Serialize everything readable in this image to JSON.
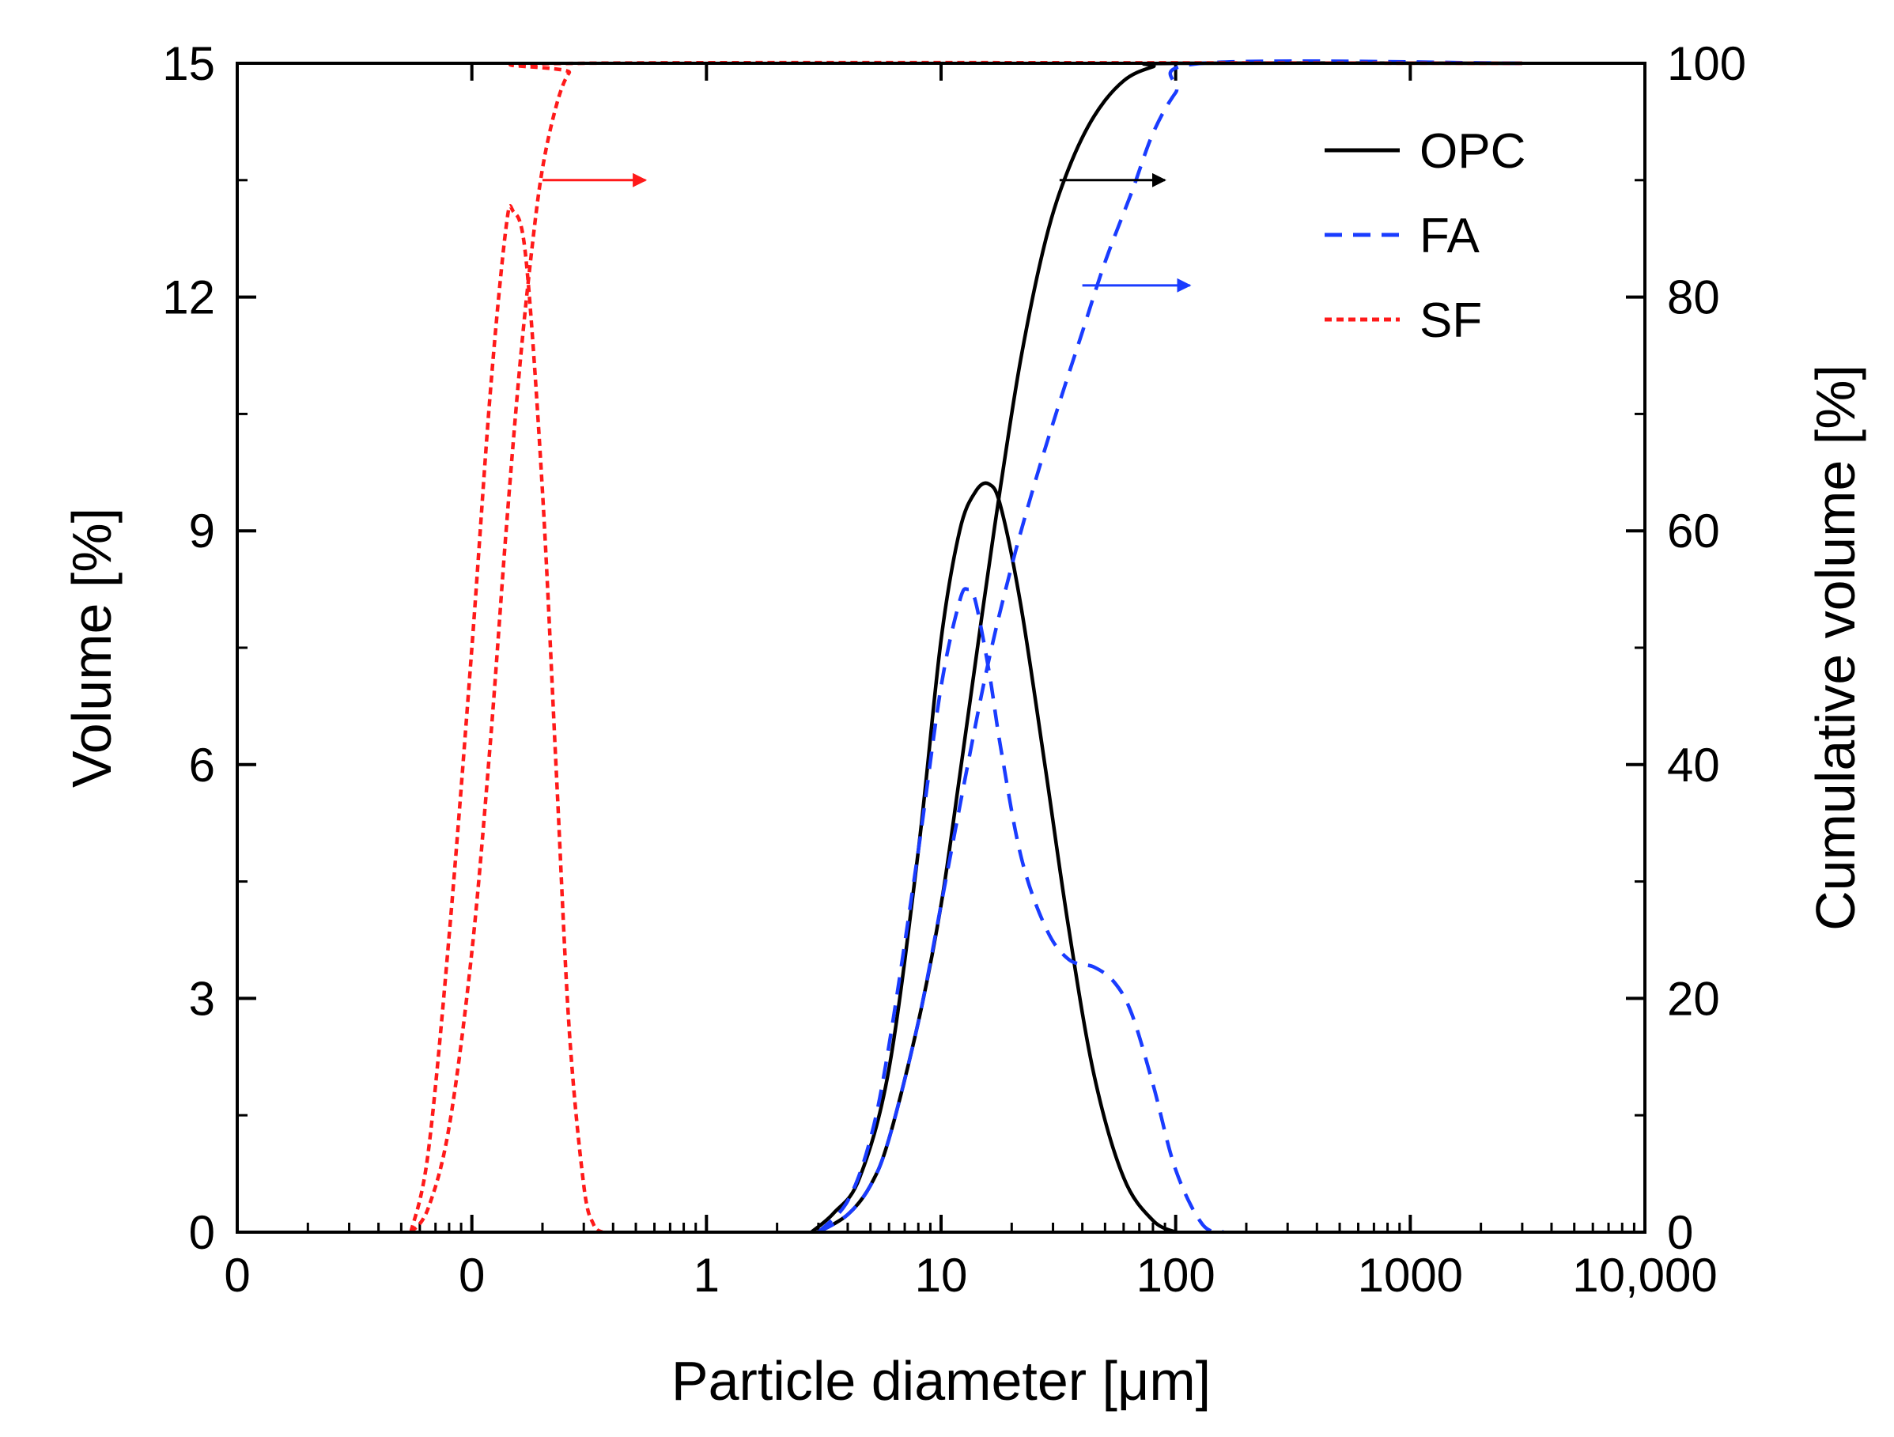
{
  "chart_data": {
    "type": "line",
    "title": "",
    "xlabel": "Particle diameter [μm]",
    "ylabel": "Volume [%]",
    "y2label": "Cumulative volume [%]",
    "xscale": "log",
    "xlim": [
      0.01,
      10000
    ],
    "ylim": [
      0,
      15
    ],
    "y2lim": [
      0,
      100
    ],
    "x_tick_values": [
      0.01,
      0.1,
      1,
      10,
      100,
      1000,
      10000
    ],
    "x_tick_labels": [
      "0",
      "0",
      "1",
      "10",
      "100",
      "1000",
      "10,000"
    ],
    "y_ticks": [
      0,
      3,
      6,
      9,
      12,
      15
    ],
    "y_tick_labels": [
      "0",
      "3",
      "6",
      "9",
      "12",
      "15"
    ],
    "y2_ticks": [
      0,
      20,
      40,
      60,
      80,
      100
    ],
    "y2_tick_labels": [
      "0",
      "20",
      "40",
      "60",
      "80",
      "100"
    ],
    "grid": false,
    "legend_position": "top-right",
    "series": [
      {
        "name": "OPC",
        "color": "#000000",
        "dash": "solid",
        "axis": "left",
        "x": [
          2.8,
          3.5,
          4.5,
          6,
          8,
          10,
          12,
          14,
          16,
          18,
          22,
          28,
          35,
          45,
          60,
          80,
          100
        ],
        "y": [
          0,
          0.25,
          0.7,
          2.1,
          4.9,
          7.6,
          9.0,
          9.5,
          9.6,
          9.3,
          8.0,
          5.9,
          3.9,
          2.0,
          0.7,
          0.15,
          0
        ]
      },
      {
        "name": "OPC cumulative",
        "color": "#000000",
        "dash": "solid",
        "axis": "right",
        "x": [
          3,
          4,
          5,
          6,
          8,
          10,
          12,
          15,
          18,
          22,
          28,
          35,
          45,
          60,
          80,
          100,
          3000
        ],
        "y": [
          0,
          1.5,
          4,
          8,
          18,
          28,
          39,
          53,
          64,
          75,
          85,
          91,
          95.5,
          98.5,
          99.7,
          100,
          100
        ]
      },
      {
        "name": "FA",
        "color": "#1a3cff",
        "dash": "dashed",
        "axis": "left",
        "x": [
          3,
          4,
          5,
          6,
          8,
          10,
          12,
          13,
          14,
          16,
          18,
          22,
          28,
          35,
          45,
          55,
          65,
          80,
          100,
          130,
          160
        ],
        "y": [
          0,
          0.4,
          1.2,
          2.4,
          4.9,
          7.0,
          8.1,
          8.25,
          8.1,
          7.2,
          6.2,
          4.8,
          3.9,
          3.5,
          3.4,
          3.2,
          2.8,
          1.9,
          0.8,
          0.1,
          0
        ]
      },
      {
        "name": "FA cumulative",
        "color": "#1a3cff",
        "dash": "dashed",
        "axis": "right",
        "x": [
          3,
          4,
          5,
          6,
          8,
          10,
          13,
          16,
          20,
          25,
          32,
          40,
          50,
          65,
          80,
          100,
          130,
          3000
        ],
        "y": [
          0,
          1.5,
          4,
          8,
          18,
          28,
          40,
          49,
          57,
          64,
          71,
          77,
          83,
          89,
          94,
          97.5,
          100,
          100
        ]
      },
      {
        "name": "SF",
        "color": "#ff1a1a",
        "dash": "dotted",
        "axis": "left",
        "x": [
          0.055,
          0.065,
          0.08,
          0.1,
          0.12,
          0.14,
          0.15,
          0.17,
          0.2,
          0.23,
          0.26,
          0.3,
          0.33,
          0.36
        ],
        "y": [
          0,
          1.0,
          3.8,
          7.5,
          10.8,
          12.9,
          13.1,
          12.5,
          9.5,
          5.8,
          2.6,
          0.6,
          0.1,
          0
        ]
      },
      {
        "name": "SF cumulative",
        "color": "#ff1a1a",
        "dash": "dotted",
        "axis": "right",
        "x": [
          0.055,
          0.065,
          0.08,
          0.1,
          0.12,
          0.14,
          0.16,
          0.18,
          0.2,
          0.23,
          0.26,
          0.3,
          3000
        ],
        "y": [
          0,
          2,
          9,
          24,
          42,
          60,
          74,
          84,
          91,
          96.5,
          99.2,
          100,
          100
        ]
      }
    ],
    "annotations": [
      {
        "name": "sf-arrow",
        "color": "#ff1a1a",
        "x_start": 0.2,
        "x_end": 0.55,
        "y2": 90
      },
      {
        "name": "opc-arrow",
        "color": "#000000",
        "x_start": 32,
        "x_end": 90,
        "y2": 90
      },
      {
        "name": "fa-arrow",
        "color": "#1a3cff",
        "x_start": 40,
        "x_end": 115,
        "y2": 81
      }
    ],
    "legend": [
      {
        "label": "OPC",
        "color": "#000000",
        "dash": "solid"
      },
      {
        "label": "FA",
        "color": "#1a3cff",
        "dash": "dashed"
      },
      {
        "label": "SF",
        "color": "#ff1a1a",
        "dash": "dotted"
      }
    ]
  }
}
